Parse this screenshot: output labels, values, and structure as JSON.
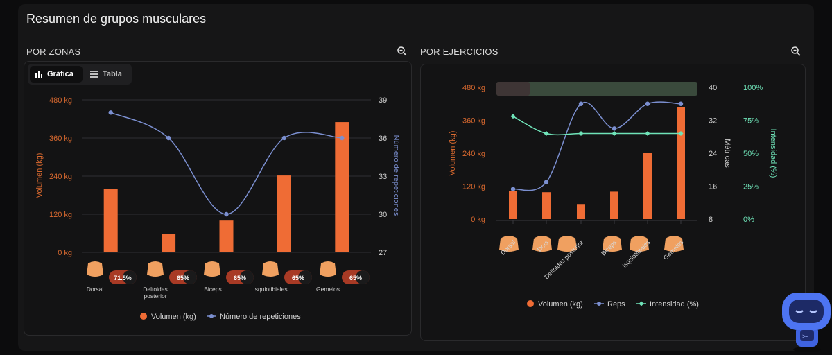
{
  "page_title": "Resumen de grupos musculares",
  "colors": {
    "volume": "#ef6c35",
    "reps": "#7b8fd0",
    "intensity": "#6fe3b8",
    "axis_orange": "#d9692f",
    "grid": "#2f2f33"
  },
  "zones": {
    "label": "POR ZONAS",
    "zoom_icon": "zoom-in-icon",
    "tabs": [
      {
        "label": "Gráfica",
        "icon": "bar-chart-icon"
      },
      {
        "label": "Tabla",
        "icon": "list-icon"
      }
    ],
    "badge_categories": [
      "Dorsal",
      "Deltoides posterior",
      "Biceps",
      "Isquiotibiales",
      "Gemelos"
    ],
    "badges": [
      "71.5%",
      "65%",
      "65%",
      "65%",
      "65%"
    ],
    "legend": [
      "Volumen (kg)",
      "Número de repeticiones"
    ]
  },
  "exercises": {
    "label": "POR EJERCICIOS",
    "zoom_icon": "zoom-in-icon",
    "legend": [
      "Volumen (kg)",
      "Reps",
      "Intensidad (%)"
    ]
  },
  "chart_data": [
    {
      "type": "bar",
      "categories": [
        "Dorsal",
        "Deltoides posterior",
        "Biceps",
        "Isquiotibiales",
        "Gemelos"
      ],
      "series": [
        {
          "name": "Volumen (kg)",
          "type": "bar",
          "axis": "left",
          "values": [
            200,
            58,
            100,
            242,
            410
          ]
        },
        {
          "name": "Número de repeticiones",
          "type": "line",
          "axis": "right",
          "values": [
            38,
            36,
            30,
            36,
            36
          ]
        }
      ],
      "ylabel": "Volumen (kg)",
      "y2label": "Número de repeticiones",
      "ylim": [
        0,
        480
      ],
      "y2lim": [
        27,
        39
      ],
      "yticks": [
        "0 kg",
        "120 kg",
        "240 kg",
        "360 kg",
        "480 kg"
      ],
      "y2ticks": [
        "27",
        "30",
        "33",
        "36",
        "39"
      ],
      "grid": true,
      "legend": "bottom"
    },
    {
      "type": "bar",
      "categories": [
        "Dorsal",
        "Dorsal",
        "Deltoides posterior",
        "Biceps",
        "Isquiotibiales",
        "Gemelos"
      ],
      "x_labels": [
        "Dorsal",
        "Dors",
        "Deltoides posterior",
        "Biceps",
        "Isquiotibiales",
        "Gemelos"
      ],
      "series": [
        {
          "name": "Volumen (kg)",
          "type": "bar",
          "axis": "left",
          "values": [
            102,
            98,
            55,
            100,
            242,
            408
          ]
        },
        {
          "name": "Reps",
          "type": "line",
          "axis": "right",
          "values": [
            15.3,
            17,
            36,
            30,
            36,
            36
          ]
        },
        {
          "name": "Intensidad (%)",
          "type": "line",
          "axis": "right2",
          "values": [
            78,
            65,
            65,
            65,
            65,
            65
          ]
        }
      ],
      "ylabel": "Volumen (kg)",
      "y2label": "Métricas",
      "y3label": "Intensidad (%)",
      "ylim": [
        0,
        480
      ],
      "y2lim": [
        8,
        40
      ],
      "y3lim": [
        0,
        100
      ],
      "yticks": [
        "0 kg",
        "120 kg",
        "240 kg",
        "360 kg",
        "480 kg"
      ],
      "y2ticks": [
        "8",
        "16",
        "24",
        "32",
        "40"
      ],
      "y3ticks": [
        "0%",
        "25%",
        "50%",
        "75%",
        "100%"
      ],
      "grid": false,
      "legend": "bottom"
    }
  ]
}
